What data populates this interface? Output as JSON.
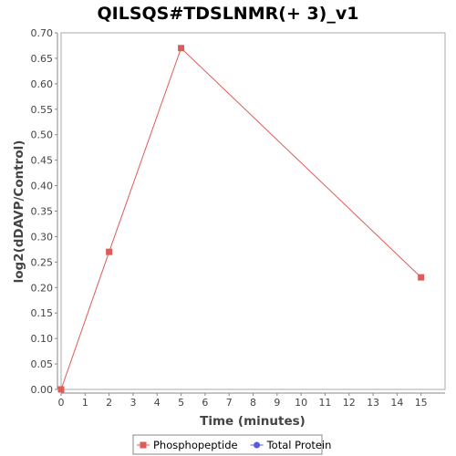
{
  "chart_data": {
    "type": "line",
    "title": "QILSQS#TDSLNMR(+ 3)_v1",
    "xlabel": "Time (minutes)",
    "ylabel": "log2(dDAVP/Control)",
    "xlim": [
      0,
      16
    ],
    "ylim": [
      0,
      0.7
    ],
    "x_ticks": [
      "0",
      "1",
      "2",
      "3",
      "4",
      "5",
      "6",
      "7",
      "8",
      "9",
      "10",
      "11",
      "12",
      "13",
      "14",
      "15"
    ],
    "y_ticks": [
      "0.00",
      "0.05",
      "0.10",
      "0.15",
      "0.20",
      "0.25",
      "0.30",
      "0.35",
      "0.40",
      "0.45",
      "0.50",
      "0.55",
      "0.60",
      "0.65",
      "0.70"
    ],
    "grid": false,
    "legend_position": "bottom-center",
    "series": [
      {
        "name": "Phosphopeptide",
        "color": "#e05a5a",
        "marker": "square",
        "x": [
          0,
          2,
          5,
          15
        ],
        "y": [
          0.0,
          0.27,
          0.67,
          0.22
        ]
      },
      {
        "name": "Total Protein",
        "color": "#5a5ae0",
        "marker": "circle",
        "x": [],
        "y": []
      }
    ]
  }
}
